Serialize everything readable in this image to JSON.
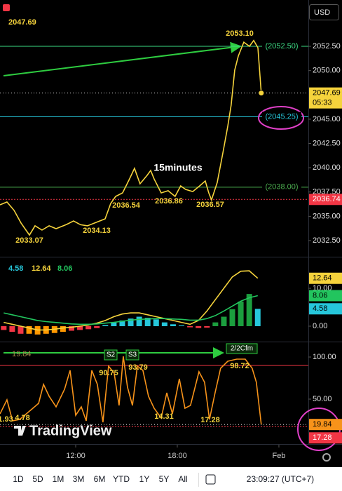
{
  "currency": "USD",
  "countdown": "05:33",
  "watermark": "TradingView",
  "toolbar": {
    "ranges": [
      "1D",
      "5D",
      "1M",
      "3M",
      "6M",
      "YTD",
      "1Y",
      "5Y",
      "All"
    ],
    "clock": "23:09:27 (UTC+7)"
  },
  "chart_data": [
    {
      "type": "line",
      "title": "15minutes",
      "x": [
        7.53,
        7.94,
        8.36,
        8.77,
        9.27,
        9.6,
        10.01,
        10.43,
        10.84,
        11.46,
        11.87,
        12.29,
        12.7,
        13.12,
        13.74,
        14.07,
        14.36,
        14.77,
        15.18,
        15.47,
        15.8,
        16.22,
        16.43,
        16.63,
        17.05,
        17.46,
        17.87,
        18.2,
        18.49,
        18.91,
        19.32,
        19.65,
        19.86,
        20.02,
        20.36,
        20.69,
        20.98,
        21.18,
        21.39,
        21.6,
        21.93,
        22.26,
        22.51,
        22.76,
        22.96
      ],
      "series": [
        {
          "color": "#f5d33c",
          "values": [
            2036.18,
            2036.47,
            2035.61,
            2034.31,
            2033.07,
            2034.02,
            2033.58,
            2034.02,
            2033.73,
            2034.16,
            2034.52,
            2034.13,
            2034.02,
            2034.31,
            2034.74,
            2036.33,
            2037.05,
            2037.41,
            2038.85,
            2039.94,
            2038.35,
            2039.22,
            2039.72,
            2038.85,
            2037.41,
            2037.63,
            2037.05,
            2038.13,
            2037.77,
            2037.55,
            2038.13,
            2038.64,
            2037.41,
            2036.69,
            2038.49,
            2041.52,
            2044.27,
            2046.44,
            2050.05,
            2051.49,
            2052.93,
            2052.5,
            2053.1,
            2052.36,
            2047.69
          ]
        }
      ],
      "xlim": [
        7.53,
        25.74
      ],
      "xticks": [
        {
          "value": 12,
          "label": "12:00"
        },
        {
          "value": 18,
          "label": "18:00"
        },
        {
          "value": 24,
          "label": "Feb"
        }
      ],
      "ylim": [
        2030.91,
        2057.27
      ],
      "yticks": [
        {
          "value": 2032.5,
          "label": "2032.50"
        },
        {
          "value": 2035,
          "label": "2035.00"
        },
        {
          "value": 2037.5,
          "label": "2037.50"
        },
        {
          "value": 2040,
          "label": "2040.00"
        },
        {
          "value": 2042.5,
          "label": "2042.50"
        },
        {
          "value": 2045,
          "label": "2045.00"
        },
        {
          "value": 2050,
          "label": "2050.00"
        },
        {
          "value": 2052.5,
          "label": "2052.50"
        }
      ],
      "levels": [
        {
          "value": 2052.5,
          "label": "(2052.50)",
          "color": "#3ddc84",
          "label_position": "line"
        },
        {
          "value": 2045.25,
          "label": "(2045.25)",
          "color": "#26c6da",
          "label_position": "line"
        },
        {
          "value": 2038,
          "label": "(2038.00)",
          "color": "#4caf50",
          "label_position": "line"
        },
        {
          "value": 2036.74,
          "label": "2036.74",
          "color": "#f23645",
          "label_position": "axis"
        }
      ],
      "annotations": [
        "2053.10",
        "2033.07",
        "2034.13",
        "2036.54",
        "2036.86",
        "2036.57"
      ]
    },
    {
      "type": "macd",
      "x": [
        7.75,
        8.25,
        8.75,
        9.25,
        9.75,
        10.25,
        10.75,
        11.25,
        11.75,
        12.25,
        12.75,
        13.25,
        13.75,
        14.25,
        14.75,
        15.25,
        15.75,
        16.25,
        16.75,
        17.25,
        17.75,
        18.25,
        18.75,
        19.25,
        19.75,
        20.25,
        20.75,
        21.25,
        21.75,
        22.25,
        22.75
      ],
      "series": [
        {
          "type": "histogram",
          "color": "#26c6da",
          "values": [
            -1,
            -1.5,
            -2,
            -2,
            -2.2,
            -2,
            -1.8,
            -1.5,
            -1.2,
            -1,
            -0.8,
            -0.5,
            0.3,
            1,
            1.5,
            2,
            2.5,
            2.2,
            1.8,
            1,
            0.5,
            0.2,
            -0.3,
            -0.5,
            -0.4,
            1,
            2.5,
            4.5,
            6.5,
            8.5,
            4.58
          ],
          "colors": [
            "#f23645",
            "#f23645",
            "#f23645",
            "#ff9800",
            "#ff9800",
            "#ff9800",
            "#ff9800",
            "#ff9800",
            "#f23645",
            "#f23645",
            "#f23645",
            "#f23645",
            "#26c6da",
            "#26c6da",
            "#26c6da",
            "#26c6da",
            "#26c6da",
            "#26c6da",
            "#26c6da",
            "#26c6da",
            "#26c6da",
            "#26c6da",
            "#f23645",
            "#f23645",
            "#f23645",
            "#1b9e3e",
            "#1b9e3e",
            "#1b9e3e",
            "#1b9e3e",
            "#1b9e3e",
            "#26c6da"
          ]
        },
        {
          "color": "#f5d33c",
          "values": [
            1,
            0.5,
            0,
            -0.5,
            -1,
            -1,
            -0.8,
            -0.5,
            -0.3,
            0,
            0.3,
            0.8,
            1.5,
            2.5,
            3.2,
            3.5,
            3.5,
            3,
            2.5,
            2,
            1.5,
            1,
            0.5,
            1.5,
            4,
            7,
            10,
            13,
            14.5,
            14.6,
            12.64
          ]
        },
        {
          "color": "#22c55e",
          "values": [
            3.5,
            3,
            2.5,
            2,
            1.5,
            1.2,
            1,
            0.8,
            0.6,
            0.5,
            0.5,
            0.6,
            0.8,
            1,
            1.3,
            1.6,
            1.8,
            1.9,
            2,
            2,
            1.9,
            1.8,
            1.6,
            1.6,
            2,
            2.8,
            4,
            5.3,
            6.6,
            7.5,
            8.06
          ]
        }
      ],
      "ylim": [
        -3.7,
        17.96
      ],
      "yticks": [
        {
          "value": 0,
          "label": "0.00"
        },
        {
          "value": 10,
          "label": "10.00"
        }
      ]
    },
    {
      "type": "line",
      "x": [
        7.53,
        7.94,
        8.27,
        8.69,
        9.18,
        9.81,
        10.1,
        10.43,
        10.84,
        11.34,
        11.67,
        12,
        12.33,
        12.62,
        12.95,
        13.28,
        13.61,
        13.94,
        14.27,
        14.56,
        14.81,
        15.06,
        15.35,
        15.64,
        15.97,
        16.3,
        16.63,
        17.05,
        17.38,
        17.71,
        18.12,
        18.45,
        18.78,
        19.28,
        19.61,
        19.9,
        20.23,
        20.56,
        20.98,
        21.51,
        22.01,
        22.42,
        22.67,
        22.96
      ],
      "series": [
        {
          "color": "#f7931a",
          "values": [
            32.5,
            49.2,
            24.2,
            25.8,
            34.2,
            45,
            67.5,
            53.3,
            40.8,
            61.7,
            84.2,
            30.8,
            40.8,
            24.2,
            84.2,
            67.5,
            22.5,
            89.2,
            80.8,
            42.5,
            100.8,
            64.2,
            42.5,
            89.2,
            84.2,
            53.3,
            39.2,
            27.5,
            57.5,
            32.5,
            74.2,
            39.2,
            42.5,
            82.5,
            70,
            25.8,
            57.5,
            86.7,
            95,
            97.5,
            97.5,
            86.7,
            70,
            19.84
          ]
        }
      ],
      "ylim": [
        -2.5,
        117.5
      ],
      "yticks": [
        {
          "value": 50,
          "label": "50.00"
        },
        {
          "value": 100,
          "label": "100.00"
        }
      ],
      "levels": [
        {
          "value": 90,
          "color": "#f23645"
        },
        {
          "value": 17.28,
          "label": "17.28",
          "color": "#f23645",
          "label_position": "axis"
        }
      ],
      "annotations": [
        "1.93",
        "4.78",
        "90.75",
        "93.79",
        "14.31",
        "17.28",
        "98.72"
      ],
      "signals": [
        "S2",
        "S3",
        "2/2Cfm"
      ]
    }
  ]
}
